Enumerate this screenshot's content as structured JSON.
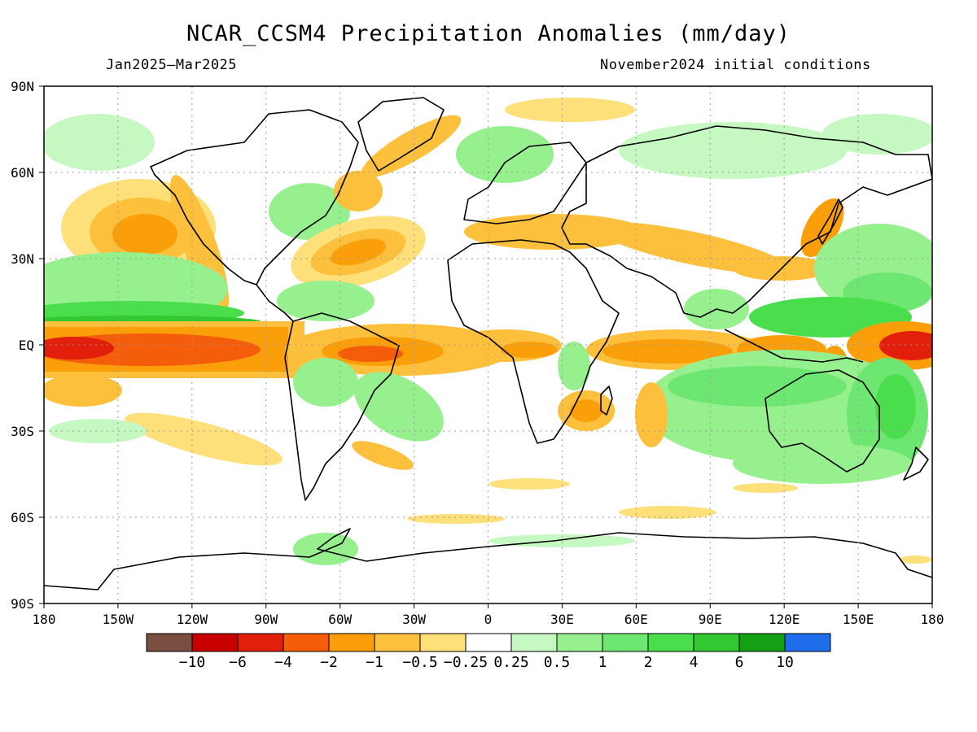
{
  "title": "NCAR_CCSM4 Precipitation Anomalies (mm/day)",
  "subtitle_left": "Jan2025–Mar2025",
  "subtitle_right": "November2024 initial conditions",
  "map": {
    "lat_ticks": [
      "90N",
      "60N",
      "30N",
      "EQ",
      "30S",
      "60S",
      "90S"
    ],
    "lon_ticks": [
      "180",
      "150W",
      "120W",
      "90W",
      "60W",
      "30W",
      "0",
      "30E",
      "60E",
      "90E",
      "120E",
      "150E",
      "180"
    ],
    "grid": true
  },
  "legend": {
    "colors": [
      "#7a4e40",
      "#c80000",
      "#e11f0a",
      "#f45d0a",
      "#fa9e0a",
      "#fdc03c",
      "#fde07a",
      "#ffffff",
      "#c6f8c2",
      "#96f08e",
      "#6ee772",
      "#4ade4d",
      "#32c832",
      "#14a014",
      "#1e6eeb"
    ],
    "labels": [
      "−10",
      "−6",
      "−4",
      "−2",
      "−1",
      "−0.5",
      "−0.25",
      "0.25",
      "0.5",
      "1",
      "2",
      "4",
      "6",
      "10"
    ]
  },
  "anomaly_palette": {
    "dry_strong": "#e11f0a",
    "dry_mid": "#f45d0a",
    "dry": "#fa9e0a",
    "dry_light": "#fdc03c",
    "dry_faint": "#fde07a",
    "wet_faint": "#c6f8c2",
    "wet_light": "#96f08e",
    "wet": "#6ee772",
    "wet_mid": "#4ade4d",
    "wet_strong": "#32c832"
  }
}
